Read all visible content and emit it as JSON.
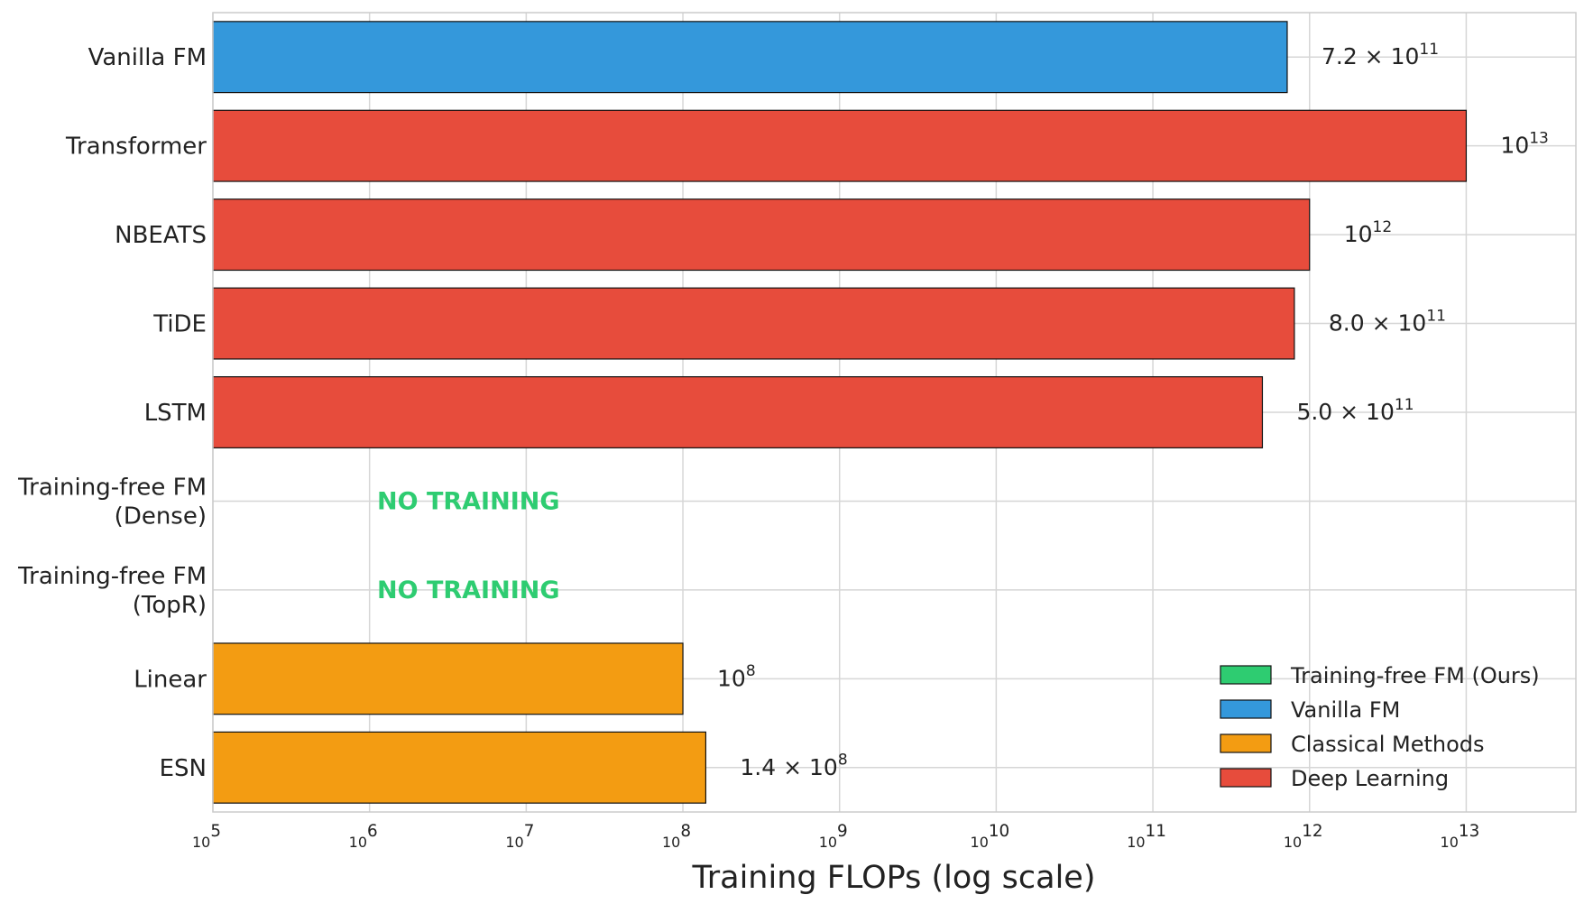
{
  "chart_data": {
    "type": "bar",
    "orientation": "horizontal",
    "x_scale": "log",
    "xlabel": "Training FLOPs (log scale)",
    "xlim_exponents": [
      5,
      13.7
    ],
    "x_ticks": [
      {
        "base": "10",
        "exp": "5"
      },
      {
        "base": "10",
        "exp": "6"
      },
      {
        "base": "10",
        "exp": "7"
      },
      {
        "base": "10",
        "exp": "8"
      },
      {
        "base": "10",
        "exp": "9"
      },
      {
        "base": "10",
        "exp": "10"
      },
      {
        "base": "10",
        "exp": "11"
      },
      {
        "base": "10",
        "exp": "12"
      },
      {
        "base": "10",
        "exp": "13"
      }
    ],
    "grid": true,
    "legend_position": "lower-right",
    "colors": {
      "training_free": "#2ecc71",
      "vanilla": "#3498db",
      "classical": "#f39c12",
      "deep": "#e74c3c"
    },
    "bars": [
      {
        "label_lines": [
          "Vanilla FM"
        ],
        "value": 720000000000.0,
        "group": "vanilla",
        "value_mant": "7.2 × 10",
        "value_exp": "11"
      },
      {
        "label_lines": [
          "Transformer"
        ],
        "value": 10000000000000.0,
        "group": "deep",
        "value_mant": "10",
        "value_exp": "13"
      },
      {
        "label_lines": [
          "NBEATS"
        ],
        "value": 1000000000000.0,
        "group": "deep",
        "value_mant": "10",
        "value_exp": "12"
      },
      {
        "label_lines": [
          "TiDE"
        ],
        "value": 800000000000.0,
        "group": "deep",
        "value_mant": "8.0 × 10",
        "value_exp": "11"
      },
      {
        "label_lines": [
          "LSTM"
        ],
        "value": 500000000000.0,
        "group": "deep",
        "value_mant": "5.0 × 10",
        "value_exp": "11"
      },
      {
        "label_lines": [
          "Training-free FM",
          "(Dense)"
        ],
        "value": null,
        "group": "training_free",
        "note": "NO TRAINING"
      },
      {
        "label_lines": [
          "Training-free FM",
          "(TopR)"
        ],
        "value": null,
        "group": "training_free",
        "note": "NO TRAINING"
      },
      {
        "label_lines": [
          "Linear"
        ],
        "value": 100000000.0,
        "group": "classical",
        "value_mant": "10",
        "value_exp": "8"
      },
      {
        "label_lines": [
          "ESN"
        ],
        "value": 140000000.0,
        "group": "classical",
        "value_mant": "1.4 × 10",
        "value_exp": "8"
      }
    ],
    "legend": [
      {
        "label": "Training-free FM (Ours)",
        "group": "training_free"
      },
      {
        "label": "Vanilla FM",
        "group": "vanilla"
      },
      {
        "label": "Classical Methods",
        "group": "classical"
      },
      {
        "label": "Deep Learning",
        "group": "deep"
      }
    ]
  }
}
